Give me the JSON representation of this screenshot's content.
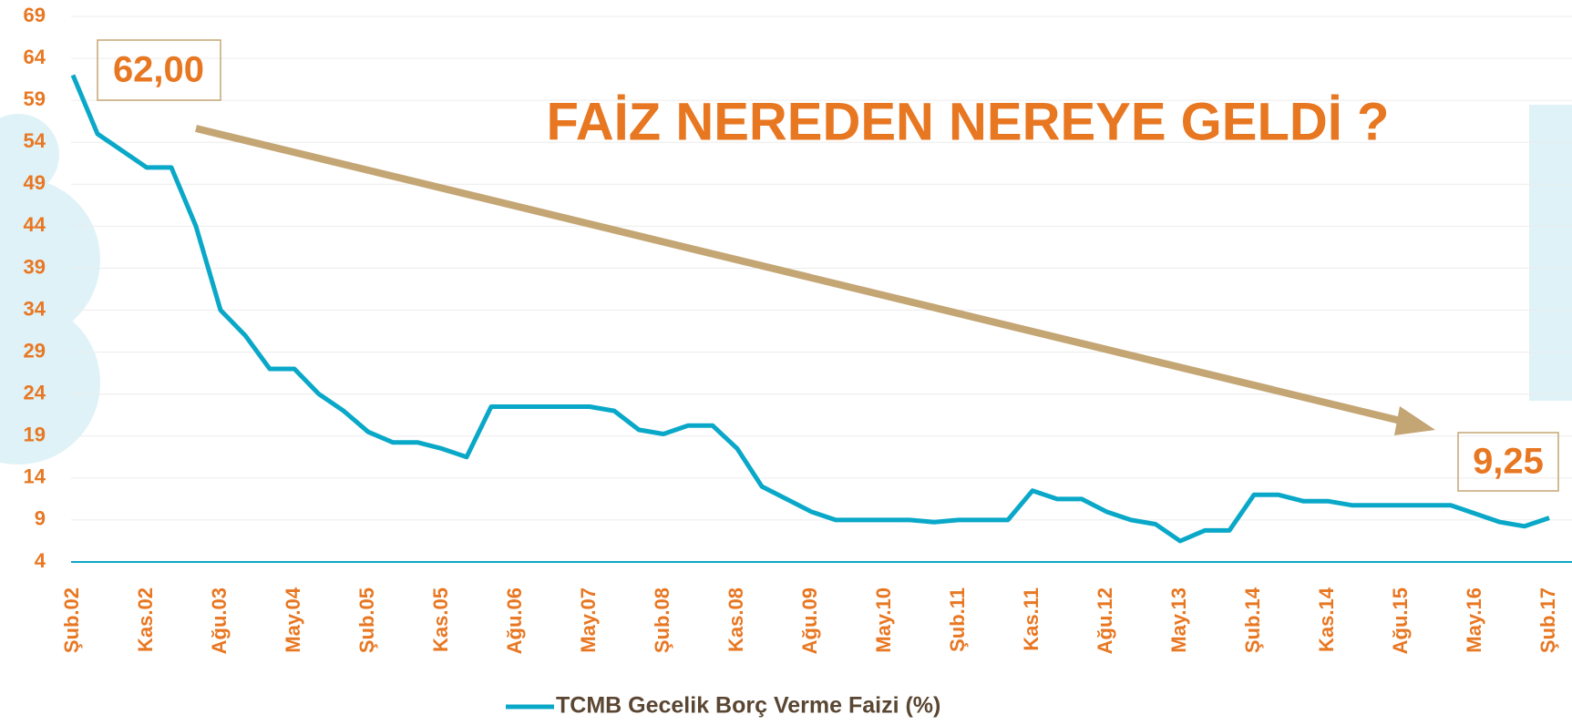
{
  "chart_data": {
    "type": "line",
    "title": "FAİZ NEREDEN NEREYE GELDİ ?",
    "annotations": [
      "62,00",
      "9,25"
    ],
    "categories": [
      "Şub.02",
      null,
      null,
      "Kas.02",
      null,
      null,
      "Ağu.03",
      null,
      null,
      "May.04",
      null,
      null,
      "Şub.05",
      null,
      null,
      "Kas.05",
      null,
      null,
      "Ağu.06",
      null,
      null,
      "May.07",
      null,
      null,
      "Şub.08",
      null,
      null,
      "Kas.08",
      null,
      null,
      "Ağu.09",
      null,
      null,
      "May.10",
      null,
      null,
      "Şub.11",
      null,
      null,
      "Kas.11",
      null,
      null,
      "Ağu.12",
      null,
      null,
      "May.13",
      null,
      null,
      "Şub.14",
      null,
      null,
      "Kas.14",
      null,
      null,
      "Ağu.15",
      null,
      null,
      "May.16",
      null,
      null,
      "Şub.17"
    ],
    "series": [
      {
        "name": "TCMB Gecelik Borç Verme Faizi (%)",
        "color": "#0aa8c8",
        "values": [
          62,
          55,
          53,
          51,
          51,
          44,
          34,
          31,
          27,
          27,
          24,
          22,
          19.5,
          18.25,
          18.25,
          17.5,
          16.5,
          22.5,
          22.5,
          22.5,
          22.5,
          22.5,
          22,
          19.75,
          19.25,
          20.25,
          20.25,
          17.5,
          13,
          11.5,
          10,
          9,
          9,
          9,
          9,
          8.75,
          9,
          9,
          9,
          12.5,
          11.5,
          11.5,
          10,
          9,
          8.5,
          6.5,
          7.75,
          7.75,
          12,
          12,
          11.25,
          11.25,
          10.75,
          10.75,
          10.75,
          10.75,
          10.75,
          9.75,
          8.75,
          8.25,
          9.25
        ]
      }
    ],
    "ylim": [
      4,
      69
    ],
    "yticks": [
      4,
      9,
      14,
      19,
      24,
      29,
      34,
      39,
      44,
      49,
      54,
      59,
      64,
      69
    ],
    "grid": true
  }
}
